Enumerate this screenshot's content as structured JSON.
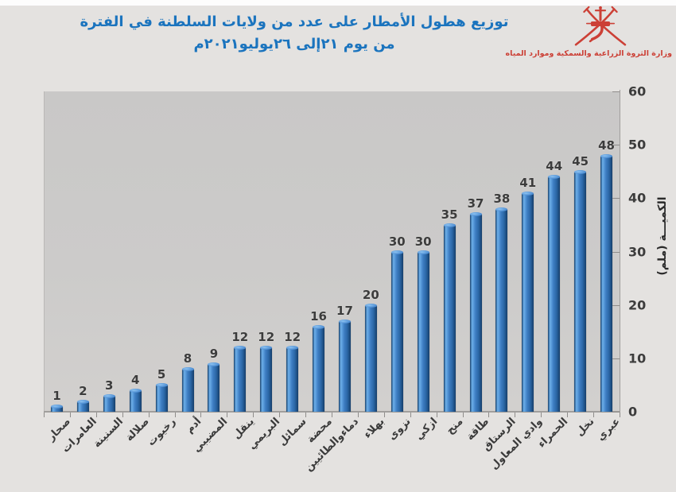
{
  "page": {
    "background": "#e4e2e0"
  },
  "header": {
    "title_line1": "توزيع هطول الأمطار على عدد من ولايات السلطنة في الفترة",
    "title_line2": "من يوم ٢١إلى ٢٦يوليو٢٠٢١م",
    "title_color": "#1b74be",
    "ministry_name": "وزارة الثروة الزراعية والسمكية وموارد المياه",
    "emblem_color": "#cc4036"
  },
  "chart_data": {
    "type": "bar",
    "title": "توزيع هطول الأمطار على عدد من ولايات السلطنة في الفترة من يوم ٢١إلى ٢٦يوليو٢٠٢١م",
    "categories": [
      "صحار",
      "العامرات",
      "السنينة",
      "صلالة",
      "رخيوت",
      "أدم",
      "المضيبي",
      "ينقل",
      "البريمي",
      "سمائل",
      "محضة",
      "دماءوالطائيين",
      "بهلاء",
      "نزوى",
      "ازكي",
      "منح",
      "طاقة",
      "الرستاق",
      "وادي المعاول",
      "الحمراء",
      "نخل",
      "عبري"
    ],
    "values": [
      1,
      2,
      3,
      4,
      5,
      8,
      9,
      12,
      12,
      12,
      16,
      17,
      20,
      30,
      30,
      35,
      37,
      38,
      41,
      44,
      45,
      48
    ],
    "xlabel": "",
    "ylabel": "الكميـــة (ملم)",
    "yticks": [
      0,
      10,
      20,
      30,
      40,
      50,
      60
    ],
    "ylim": [
      0,
      60
    ],
    "grid": false,
    "legend": false,
    "value_labels_shown": true,
    "bar_color": "#2e74b8",
    "value_label_color": "#3c3c3c",
    "plot_background": "#cbcac9",
    "axis_position": "right"
  }
}
